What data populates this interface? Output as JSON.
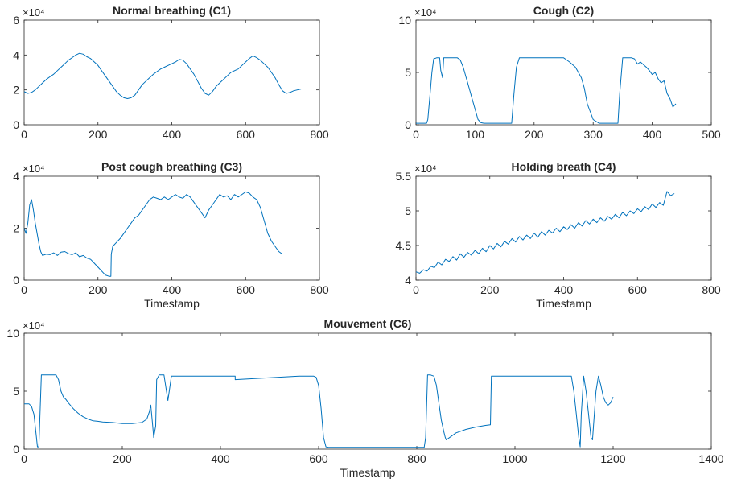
{
  "figure": {
    "line_color": "#0072BD",
    "axis_color": "#262626",
    "background": "#ffffff"
  },
  "chart_data": [
    {
      "type": "line",
      "title": "Normal breathing (C1)",
      "xlabel": "",
      "ylabel": "",
      "xlim": [
        0,
        800
      ],
      "ylim": [
        0,
        60000
      ],
      "xticks": [
        0,
        200,
        400,
        600,
        800
      ],
      "xtick_labels": [
        "0",
        "200",
        "400",
        "600",
        "800"
      ],
      "yticks": [
        0,
        20000,
        40000,
        60000
      ],
      "ytick_labels": [
        "0",
        "2",
        "4",
        "6"
      ],
      "exponent_label": "×10⁴",
      "grid": false,
      "series": [
        {
          "x": [
            0,
            10,
            20,
            30,
            40,
            50,
            60,
            70,
            80,
            90,
            100,
            110,
            120,
            130,
            140,
            150,
            160,
            170,
            180,
            190,
            200,
            210,
            220,
            230,
            240,
            250,
            260,
            270,
            280,
            290,
            300,
            310,
            320,
            330,
            340,
            350,
            360,
            370,
            380,
            390,
            400,
            410,
            420,
            430,
            440,
            450,
            460,
            470,
            480,
            490,
            500,
            510,
            520,
            530,
            540,
            550,
            560,
            570,
            580,
            590,
            600,
            610,
            620,
            630,
            640,
            650,
            660,
            670,
            680,
            690,
            700,
            710,
            720,
            730,
            740,
            750
          ],
          "y": [
            19000,
            18000,
            18500,
            20000,
            22000,
            24000,
            26000,
            27500,
            29000,
            31000,
            33000,
            35000,
            37000,
            38500,
            40000,
            41000,
            40500,
            39000,
            38000,
            36000,
            34000,
            31000,
            28000,
            25000,
            22000,
            19000,
            17000,
            15500,
            15000,
            15500,
            17000,
            20000,
            23000,
            25000,
            27000,
            29000,
            30500,
            32000,
            33000,
            34000,
            35000,
            36000,
            37500,
            37000,
            35000,
            32000,
            29000,
            25000,
            21000,
            18000,
            17000,
            19000,
            22000,
            24000,
            26000,
            28000,
            30000,
            31000,
            32000,
            34000,
            36000,
            38000,
            39500,
            38500,
            37000,
            35000,
            33000,
            30000,
            27000,
            23000,
            19500,
            18000,
            18500,
            19500,
            20000,
            20500
          ]
        }
      ]
    },
    {
      "type": "line",
      "title": "Cough (C2)",
      "xlabel": "",
      "ylabel": "",
      "xlim": [
        0,
        500
      ],
      "ylim": [
        0,
        100000
      ],
      "xticks": [
        0,
        100,
        200,
        300,
        400,
        500
      ],
      "xtick_labels": [
        "0",
        "100",
        "200",
        "300",
        "400",
        "500"
      ],
      "yticks": [
        0,
        50000,
        100000
      ],
      "ytick_labels": [
        "0",
        "5",
        "10"
      ],
      "exponent_label": "×10⁴",
      "grid": false,
      "series": [
        {
          "x": [
            0,
            18,
            20,
            24,
            27,
            30,
            35,
            40,
            42,
            45,
            47,
            50,
            70,
            75,
            80,
            85,
            90,
            95,
            100,
            105,
            110,
            115,
            120,
            140,
            162,
            166,
            170,
            175,
            250,
            255,
            260,
            270,
            280,
            285,
            290,
            300,
            310,
            342,
            345,
            350,
            365,
            370,
            375,
            380,
            390,
            395,
            400,
            405,
            410,
            415,
            420,
            425,
            430,
            435,
            440
          ],
          "y": [
            1500,
            1500,
            5000,
            30000,
            50000,
            63000,
            64000,
            64000,
            52000,
            45000,
            64000,
            64000,
            64000,
            62000,
            55000,
            45000,
            35000,
            25000,
            15000,
            5000,
            2000,
            1500,
            1500,
            1500,
            1500,
            30000,
            55000,
            64000,
            64000,
            62000,
            60000,
            55000,
            45000,
            35000,
            20000,
            5000,
            1500,
            1500,
            30000,
            64000,
            64000,
            63000,
            58000,
            60000,
            55000,
            52000,
            48000,
            50000,
            44000,
            40000,
            42000,
            30000,
            25000,
            17000,
            20000
          ]
        }
      ]
    },
    {
      "type": "line",
      "title": "Post cough breathing (C3)",
      "xlabel": "Timestamp",
      "ylabel": "",
      "xlim": [
        0,
        800
      ],
      "ylim": [
        0,
        40000
      ],
      "xticks": [
        0,
        200,
        400,
        600,
        800
      ],
      "xtick_labels": [
        "0",
        "200",
        "400",
        "600",
        "800"
      ],
      "yticks": [
        0,
        20000,
        40000
      ],
      "ytick_labels": [
        "0",
        "2",
        "4"
      ],
      "exponent_label": "×10⁴",
      "grid": false,
      "series": [
        {
          "x": [
            0,
            5,
            10,
            15,
            20,
            25,
            30,
            35,
            40,
            45,
            50,
            60,
            70,
            80,
            90,
            100,
            110,
            120,
            130,
            140,
            150,
            160,
            170,
            180,
            190,
            200,
            210,
            220,
            230,
            235,
            236,
            240,
            250,
            260,
            270,
            280,
            290,
            300,
            310,
            320,
            330,
            340,
            350,
            360,
            370,
            380,
            390,
            400,
            410,
            420,
            430,
            440,
            450,
            460,
            470,
            480,
            490,
            500,
            510,
            520,
            530,
            540,
            550,
            560,
            570,
            580,
            590,
            600,
            610,
            620,
            630,
            640,
            650,
            660,
            670,
            680,
            690,
            700
          ],
          "y": [
            20000,
            18000,
            22000,
            29000,
            31000,
            27000,
            22000,
            18000,
            14000,
            11000,
            9500,
            10000,
            9800,
            10500,
            9500,
            10800,
            11000,
            10200,
            9800,
            10500,
            9000,
            9500,
            8500,
            8000,
            6500,
            5000,
            3500,
            2000,
            1500,
            1500,
            10000,
            13000,
            14500,
            16000,
            18000,
            20000,
            22000,
            24000,
            25000,
            27000,
            29000,
            31000,
            32000,
            31500,
            31000,
            32000,
            31000,
            32000,
            33000,
            32000,
            31500,
            33000,
            32000,
            30000,
            28000,
            26000,
            24000,
            27000,
            29000,
            31000,
            33000,
            32000,
            32500,
            31000,
            33000,
            32000,
            33000,
            34000,
            33500,
            32000,
            31000,
            28000,
            23000,
            18000,
            15000,
            13000,
            11000,
            10000
          ]
        }
      ]
    },
    {
      "type": "line",
      "title": "Holding breath (C4)",
      "xlabel": "Timestamp",
      "ylabel": "",
      "xlim": [
        0,
        800
      ],
      "ylim": [
        40000,
        55000
      ],
      "xticks": [
        0,
        200,
        400,
        600,
        800
      ],
      "xtick_labels": [
        "0",
        "200",
        "400",
        "600",
        "800"
      ],
      "yticks": [
        40000,
        45000,
        50000,
        55000
      ],
      "ytick_labels": [
        "4",
        "4.5",
        "5",
        "5.5"
      ],
      "exponent_label": "×10⁴",
      "grid": false,
      "series": [
        {
          "x": [
            0,
            10,
            20,
            30,
            40,
            50,
            60,
            70,
            80,
            90,
            100,
            110,
            120,
            130,
            140,
            150,
            160,
            170,
            180,
            190,
            200,
            210,
            220,
            230,
            240,
            250,
            260,
            270,
            280,
            290,
            300,
            310,
            320,
            330,
            340,
            350,
            360,
            370,
            380,
            390,
            400,
            410,
            420,
            430,
            440,
            450,
            460,
            470,
            480,
            490,
            500,
            510,
            520,
            530,
            540,
            550,
            560,
            570,
            580,
            590,
            600,
            610,
            620,
            630,
            640,
            650,
            660,
            670,
            680,
            690,
            700
          ],
          "y": [
            41200,
            41000,
            41500,
            41300,
            42000,
            41800,
            42600,
            42200,
            43000,
            42700,
            43400,
            42900,
            43800,
            43300,
            44000,
            43600,
            44300,
            43800,
            44600,
            44100,
            45000,
            44500,
            45300,
            44800,
            45600,
            45200,
            46000,
            45500,
            46300,
            45800,
            46500,
            46000,
            46800,
            46200,
            47000,
            46500,
            47200,
            46800,
            47500,
            47000,
            47700,
            47300,
            48000,
            47500,
            48300,
            47800,
            48600,
            48100,
            48800,
            48300,
            49000,
            48500,
            49200,
            48800,
            49500,
            49000,
            49800,
            49300,
            50000,
            49600,
            50300,
            49900,
            50600,
            50200,
            51000,
            50500,
            51200,
            50800,
            52800,
            52200,
            52500
          ]
        }
      ]
    },
    {
      "type": "line",
      "title": "Mouvement (C6)",
      "xlabel": "Timestamp",
      "ylabel": "",
      "xlim": [
        0,
        1400
      ],
      "ylim": [
        0,
        100000
      ],
      "xticks": [
        0,
        200,
        400,
        600,
        800,
        1000,
        1200,
        1400
      ],
      "xtick_labels": [
        "0",
        "200",
        "400",
        "600",
        "800",
        "1000",
        "1200",
        "1400"
      ],
      "yticks": [
        0,
        50000,
        100000
      ],
      "ytick_labels": [
        "0",
        "5",
        "10"
      ],
      "exponent_label": "×10⁴",
      "grid": false,
      "series": [
        {
          "x": [
            0,
            10,
            15,
            20,
            25,
            27,
            30,
            35,
            65,
            70,
            75,
            80,
            85,
            90,
            100,
            110,
            120,
            130,
            140,
            150,
            160,
            180,
            200,
            220,
            240,
            250,
            255,
            258,
            262,
            264,
            268,
            270,
            275,
            285,
            290,
            293,
            300,
            310,
            430,
            430,
            560,
            590,
            595,
            600,
            605,
            610,
            615,
            620,
            815,
            818,
            822,
            828,
            835,
            840,
            845,
            850,
            855,
            858,
            860,
            870,
            880,
            900,
            920,
            940,
            950,
            952,
            1115,
            1120,
            1125,
            1130,
            1133,
            1135,
            1140,
            1145,
            1150,
            1155,
            1158,
            1160,
            1165,
            1170,
            1175,
            1180,
            1185,
            1190,
            1195,
            1200
          ],
          "y": [
            39000,
            39000,
            37000,
            30000,
            10000,
            2000,
            2000,
            64000,
            64000,
            60000,
            50000,
            45000,
            43000,
            40000,
            35000,
            31000,
            28000,
            26000,
            24500,
            24000,
            23500,
            23000,
            22000,
            22000,
            23000,
            26000,
            32000,
            38000,
            20000,
            10000,
            20000,
            60000,
            64000,
            64000,
            50000,
            42000,
            63000,
            63000,
            63000,
            60000,
            63000,
            63000,
            62000,
            55000,
            35000,
            10000,
            2000,
            1500,
            1500,
            10000,
            64000,
            64000,
            63000,
            55000,
            40000,
            25000,
            15000,
            10000,
            8000,
            11000,
            14000,
            17000,
            19000,
            20500,
            21000,
            63000,
            63000,
            50000,
            30000,
            10000,
            2000,
            30000,
            63000,
            50000,
            30000,
            10000,
            8000,
            20000,
            50000,
            63000,
            55000,
            45000,
            40000,
            38000,
            40000,
            45000
          ]
        }
      ]
    }
  ]
}
